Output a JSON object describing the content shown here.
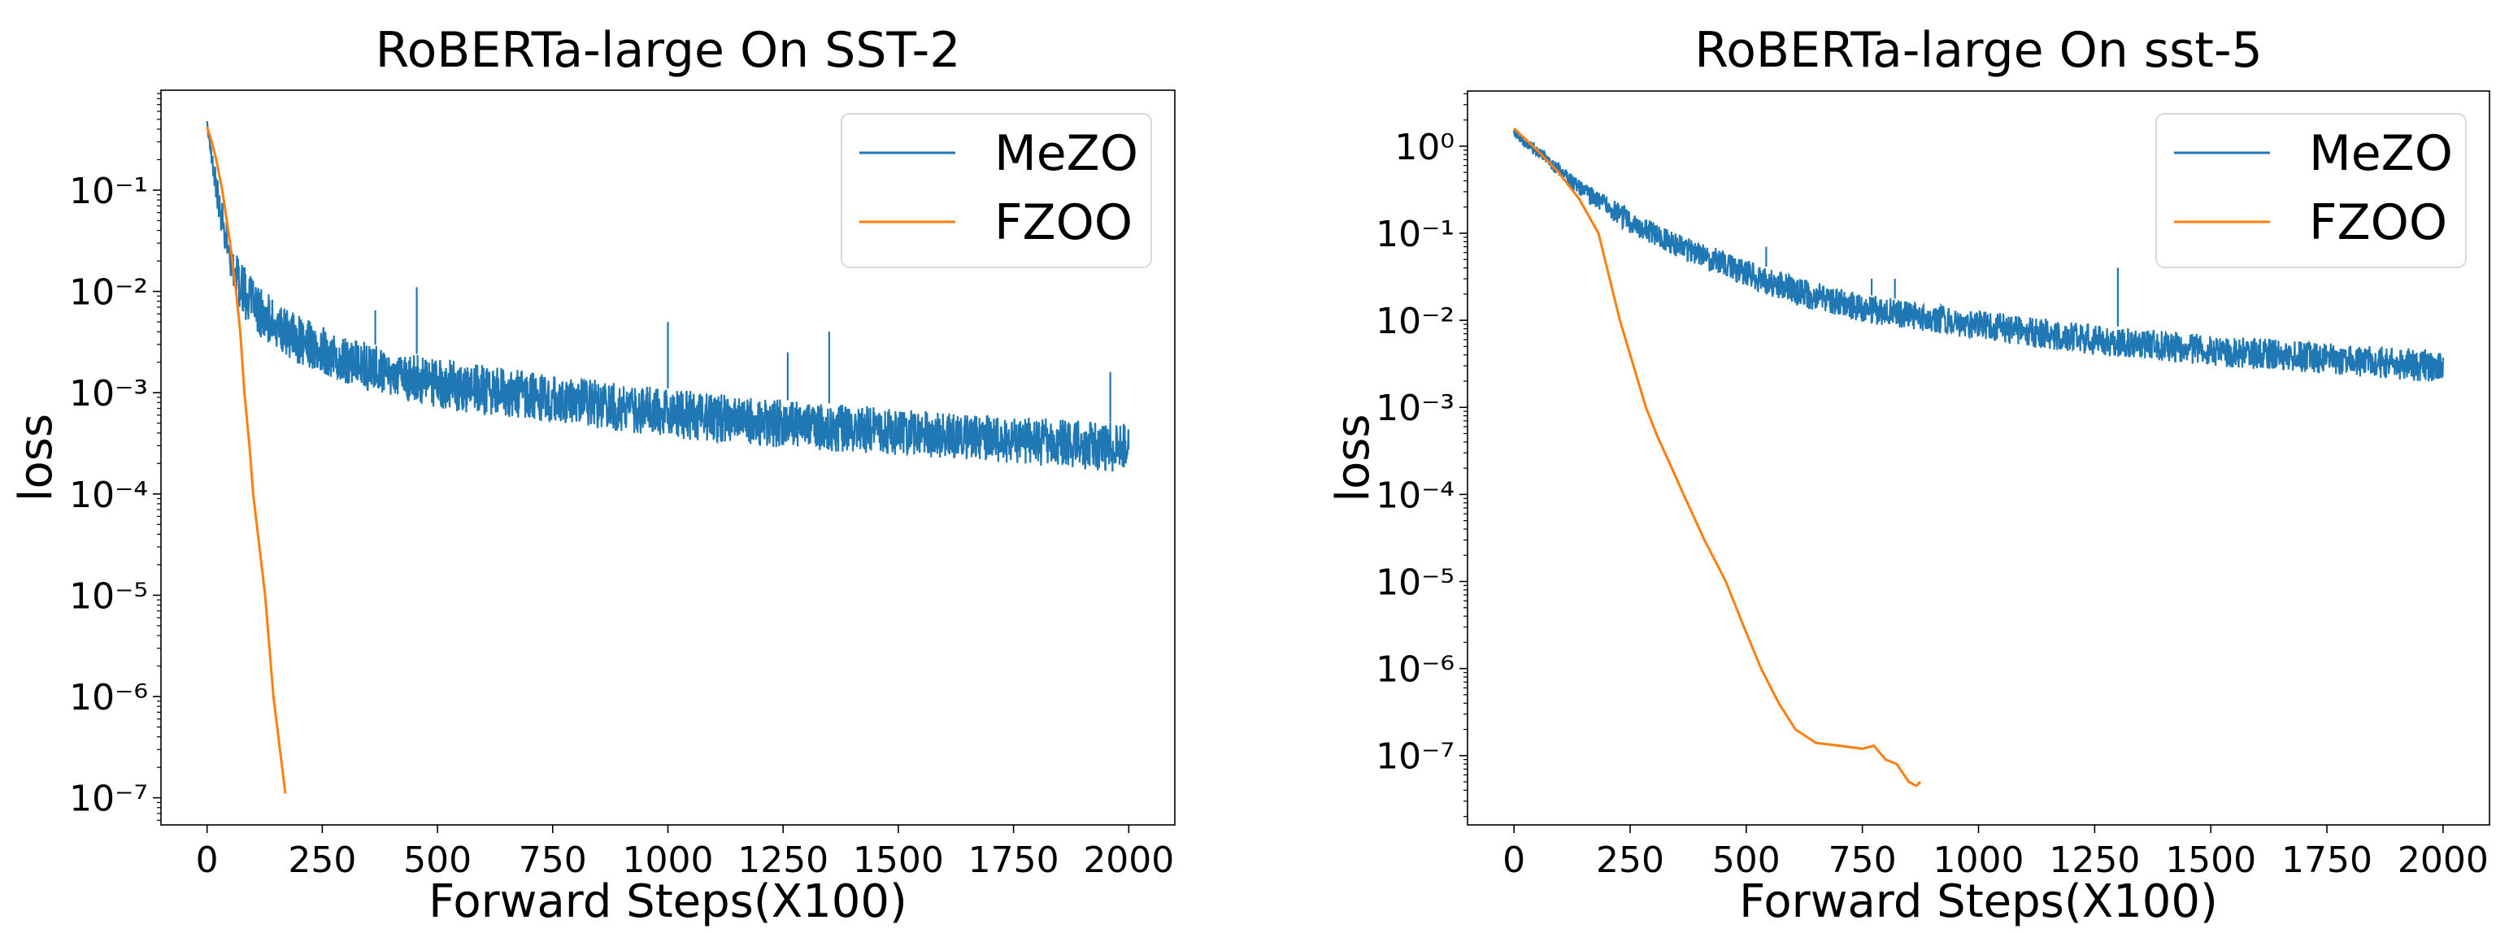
{
  "colors": {
    "MeZO": "#1f77b4",
    "FZOO": "#ff7f0e",
    "axis": "#000000",
    "legend_border": "#d9d9d9"
  },
  "chart_data": [
    {
      "type": "line",
      "title": "RoBERTa-large On SST-2",
      "xlabel": "Forward Steps(X100)",
      "ylabel": "loss",
      "yscale": "log",
      "xlim": [
        -100,
        2100
      ],
      "ylim": [
        5.4e-08,
        0.97
      ],
      "xticks": [
        0,
        250,
        500,
        750,
        1000,
        1250,
        1500,
        1750,
        2000
      ],
      "xtick_labels": [
        "0",
        "250",
        "500",
        "750",
        "1000",
        "1250",
        "1500",
        "1750",
        "2000"
      ],
      "yticks": [
        0.1,
        0.01,
        0.001,
        0.0001,
        1e-05,
        1e-06,
        1e-07
      ],
      "ytick_labels": [
        "10⁻¹",
        "10⁻²",
        "10⁻³",
        "10⁻⁴",
        "10⁻⁵",
        "10⁻⁶",
        "10⁻⁷"
      ],
      "grid": false,
      "legend": {
        "placement": "top-right",
        "entries": [
          "MeZO",
          "FZOO"
        ]
      },
      "series": [
        {
          "name": "MeZO",
          "x": [
            0,
            25,
            50,
            75,
            100,
            150,
            200,
            250,
            300,
            400,
            500,
            600,
            750,
            1000,
            1250,
            1500,
            1750,
            2000
          ],
          "lower": [
            0.4,
            0.05,
            0.014,
            0.006,
            0.004,
            0.0027,
            0.0019,
            0.0015,
            0.0012,
            0.0009,
            0.0007,
            0.0006,
            0.0005,
            0.00036,
            0.00028,
            0.00024,
            0.0002,
            0.00016
          ],
          "upper": [
            0.48,
            0.12,
            0.035,
            0.02,
            0.013,
            0.008,
            0.0058,
            0.0045,
            0.0036,
            0.0027,
            0.0022,
            0.0019,
            0.0015,
            0.0011,
            0.00085,
            0.0007,
            0.00058,
            0.0005
          ],
          "spikes": [
            [
              365,
              0.0065
            ],
            [
              455,
              0.011
            ],
            [
              1000,
              0.005
            ],
            [
              1350,
              0.004
            ],
            [
              1260,
              0.0025
            ],
            [
              1960,
              0.0016
            ]
          ]
        },
        {
          "name": "FZOO",
          "x": [
            0,
            10,
            20,
            33,
            50,
            63,
            72,
            81,
            92,
            100,
            126,
            144,
            170
          ],
          "y": [
            0.42,
            0.3,
            0.2,
            0.1,
            0.03,
            0.01,
            0.004,
            0.001,
            0.0003,
            0.0001,
            1e-05,
            1e-06,
            1.1e-07
          ]
        }
      ]
    },
    {
      "type": "line",
      "title": "RoBERTa-large On sst-5",
      "xlabel": "Forward Steps(X100)",
      "ylabel": "loss",
      "yscale": "log",
      "xlim": [
        -100,
        2100
      ],
      "ylim": [
        1.6e-08,
        4.3
      ],
      "xticks": [
        0,
        250,
        500,
        750,
        1000,
        1250,
        1500,
        1750,
        2000
      ],
      "xtick_labels": [
        "0",
        "250",
        "500",
        "750",
        "1000",
        "1250",
        "1500",
        "1750",
        "2000"
      ],
      "yticks": [
        1,
        0.1,
        0.01,
        0.001,
        0.0001,
        1e-05,
        1e-06,
        1e-07
      ],
      "ytick_labels": [
        "10⁰",
        "10⁻¹",
        "10⁻²",
        "10⁻³",
        "10⁻⁴",
        "10⁻⁵",
        "10⁻⁶",
        "10⁻⁷"
      ],
      "grid": false,
      "legend": {
        "placement": "top-right",
        "entries": [
          "MeZO",
          "FZOO"
        ]
      },
      "series": [
        {
          "name": "MeZO",
          "x": [
            0,
            25,
            50,
            100,
            150,
            200,
            250,
            317,
            400,
            500,
            600,
            750,
            1000,
            1250,
            1500,
            1750,
            2000
          ],
          "lower": [
            1.3,
            0.95,
            0.75,
            0.42,
            0.24,
            0.15,
            0.1,
            0.065,
            0.04,
            0.024,
            0.015,
            0.0095,
            0.006,
            0.004,
            0.003,
            0.0024,
            0.0019
          ],
          "upper": [
            1.7,
            1.25,
            1.05,
            0.6,
            0.38,
            0.27,
            0.19,
            0.12,
            0.08,
            0.05,
            0.032,
            0.02,
            0.013,
            0.009,
            0.0068,
            0.0055,
            0.0045
          ],
          "spikes": [
            [
              543,
              0.07
            ],
            [
              770,
              0.03
            ],
            [
              820,
              0.03
            ],
            [
              1300,
              0.04
            ]
          ]
        },
        {
          "name": "FZOO",
          "x": [
            0,
            50,
            96,
            140,
            182,
            228,
            284,
            309,
            340,
            365,
            410,
            456,
            495,
            532,
            570,
            606,
            650,
            700,
            750,
            775,
            800,
            824,
            850,
            866,
            875
          ],
          "y": [
            1.6,
            0.9,
            0.5,
            0.25,
            0.1,
            0.01,
            0.001,
            0.00046,
            0.0002,
            0.0001,
            3e-05,
            1e-05,
            3e-06,
            1e-06,
            4e-07,
            2e-07,
            1.4e-07,
            1.3e-07,
            1.2e-07,
            1.3e-07,
            9e-08,
            8e-08,
            5e-08,
            4.5e-08,
            5e-08
          ]
        }
      ]
    }
  ]
}
